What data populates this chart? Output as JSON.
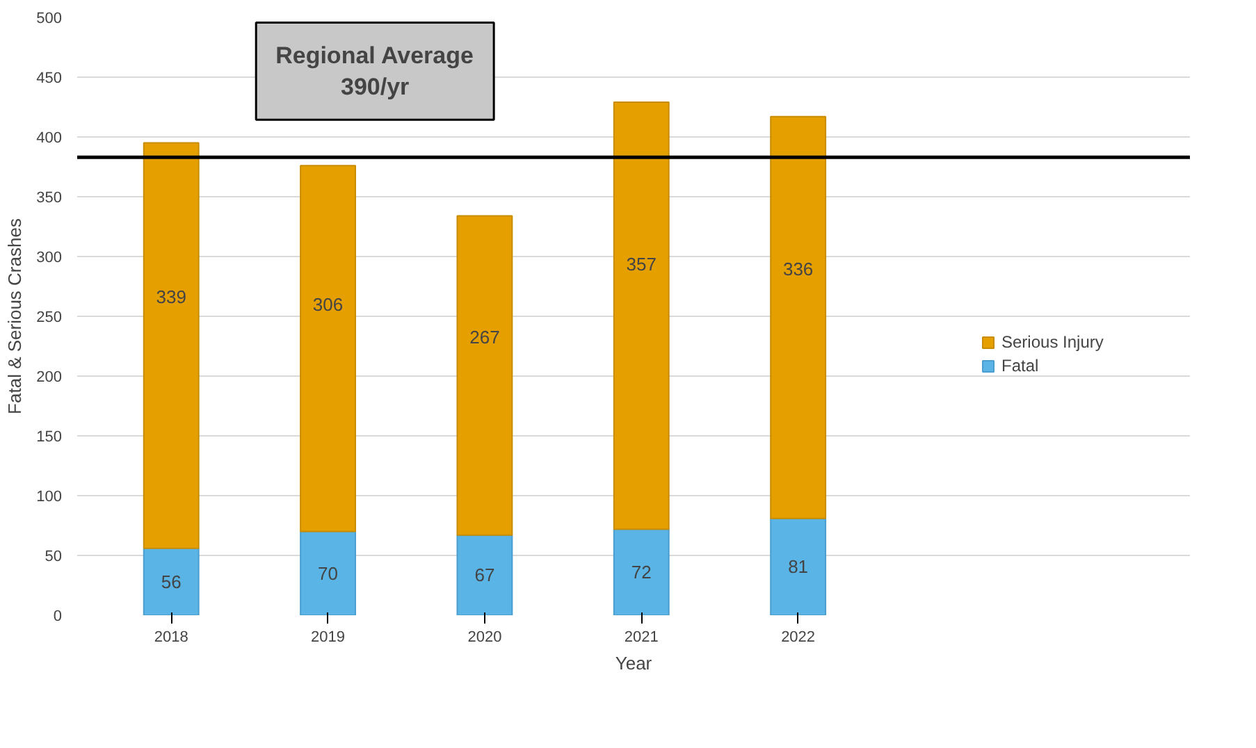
{
  "chart_data": {
    "type": "bar",
    "stacked": true,
    "xlabel": "Year",
    "ylabel": "Fatal & Serious Crashes",
    "categories": [
      "2018",
      "2019",
      "2020",
      "2021",
      "2022"
    ],
    "series": [
      {
        "name": "Fatal",
        "color": "#5ab4e5",
        "values": [
          56,
          70,
          67,
          72,
          81
        ]
      },
      {
        "name": "Serious Injury",
        "color": "#e5a000",
        "values": [
          339,
          306,
          267,
          357,
          336
        ]
      }
    ],
    "ylim": [
      0,
      500
    ],
    "yticks": [
      0,
      50,
      100,
      150,
      200,
      250,
      300,
      350,
      400,
      450,
      500
    ],
    "grid": "y",
    "legend": "right",
    "data_labels": true,
    "ref_lines": [
      {
        "axis": "y",
        "value": 383,
        "label": "Regional Average 390/yr",
        "color": "#000000"
      }
    ]
  }
}
